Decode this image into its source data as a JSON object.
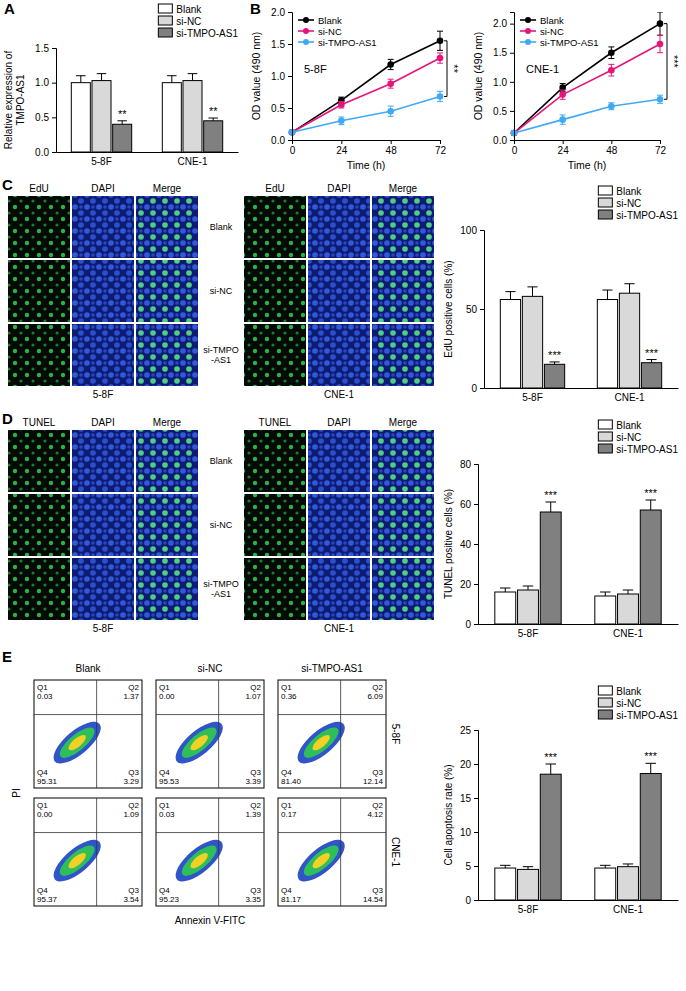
{
  "panels": [
    "A",
    "B",
    "C",
    "D",
    "E"
  ],
  "chart_data": [
    {
      "type": "bar",
      "y_label": "Relative expression of TMPO-AS1",
      "categories": [
        "5-8F",
        "CNE-1"
      ],
      "series": [
        {
          "name": "Blank",
          "color": "#ffffff",
          "values": [
            1.0,
            1.0
          ],
          "errors": [
            0.1,
            0.1
          ]
        },
        {
          "name": "si-NC",
          "color": "#d9d9d9",
          "values": [
            1.03,
            1.03
          ],
          "errors": [
            0.1,
            0.1
          ]
        },
        {
          "name": "si-TMPO-AS1",
          "color": "#808080",
          "values": [
            0.4,
            0.45
          ],
          "errors": [
            0.05,
            0.04
          ],
          "annotations": [
            "**",
            "**"
          ]
        }
      ],
      "ylim": [
        0,
        1.5
      ],
      "yticks": [
        {
          "value": 0,
          "label": "0.0"
        },
        {
          "value": 0.5,
          "label": "0.5"
        },
        {
          "value": 1,
          "label": "1.0"
        },
        {
          "value": 1.5,
          "label": "1.5"
        }
      ],
      "legend": "top-right"
    },
    {
      "type": "line",
      "subtitle": "5-8F",
      "x_label": "Time (h)",
      "y_label": "OD value (490 nm)",
      "x": [
        0,
        24,
        48,
        72
      ],
      "xlim": [
        0,
        72
      ],
      "xticks": [
        0,
        24,
        48,
        72
      ],
      "ylim": [
        0,
        2
      ],
      "yticks": [
        {
          "value": 0,
          "label": "0.0"
        },
        {
          "value": 0.5,
          "label": "0.5"
        },
        {
          "value": 1,
          "label": "1.0"
        },
        {
          "value": 1.5,
          "label": "1.5"
        },
        {
          "value": 2,
          "label": "2.0"
        }
      ],
      "marker": "circle",
      "legend": "top-left",
      "annotations": [
        "**"
      ],
      "series": [
        {
          "name": "Blank",
          "color": "#000000",
          "values": [
            0.12,
            0.62,
            1.18,
            1.55
          ],
          "errors": [
            0.02,
            0.05,
            0.08,
            0.15
          ]
        },
        {
          "name": "si-NC",
          "color": "#e5157a",
          "values": [
            0.12,
            0.55,
            0.88,
            1.28
          ],
          "errors": [
            0.02,
            0.05,
            0.07,
            0.08
          ]
        },
        {
          "name": "si-TMPO-AS1",
          "color": "#3fa9f5",
          "values": [
            0.12,
            0.3,
            0.45,
            0.68
          ],
          "errors": [
            0.02,
            0.06,
            0.08,
            0.08
          ]
        }
      ]
    },
    {
      "type": "line",
      "subtitle": "CNE-1",
      "x_label": "Time (h)",
      "y_label": "OD value (490 nm)",
      "x": [
        0,
        24,
        48,
        72
      ],
      "xlim": [
        0,
        72
      ],
      "xticks": [
        0,
        24,
        48,
        72
      ],
      "ylim": [
        0,
        2.2
      ],
      "yticks": [
        {
          "value": 0,
          "label": "0.0"
        },
        {
          "value": 0.5,
          "label": "0.5"
        },
        {
          "value": 1,
          "label": "1.0"
        },
        {
          "value": 1.5,
          "label": "1.5"
        },
        {
          "value": 2,
          "label": "2.0"
        }
      ],
      "marker": "circle",
      "legend": "top-left",
      "annotations": [
        "***"
      ],
      "series": [
        {
          "name": "Blank",
          "color": "#000000",
          "values": [
            0.12,
            0.9,
            1.5,
            2.0
          ],
          "errors": [
            0.02,
            0.07,
            0.1,
            0.2
          ]
        },
        {
          "name": "si-NC",
          "color": "#e5157a",
          "values": [
            0.12,
            0.78,
            1.2,
            1.65
          ],
          "errors": [
            0.02,
            0.08,
            0.1,
            0.15
          ]
        },
        {
          "name": "si-TMPO-AS1",
          "color": "#3fa9f5",
          "values": [
            0.12,
            0.35,
            0.58,
            0.7
          ],
          "errors": [
            0.02,
            0.08,
            0.06,
            0.07
          ]
        }
      ]
    },
    {
      "type": "bar",
      "y_label": "EdU positive cells (%)",
      "categories": [
        "5-8F",
        "CNE-1"
      ],
      "series": [
        {
          "name": "Blank",
          "color": "#ffffff",
          "values": [
            56,
            56
          ],
          "errors": [
            5,
            6
          ]
        },
        {
          "name": "si-NC",
          "color": "#d9d9d9",
          "values": [
            58,
            60
          ],
          "errors": [
            6,
            6
          ]
        },
        {
          "name": "si-TMPO-AS1",
          "color": "#808080",
          "values": [
            15,
            16
          ],
          "errors": [
            1.5,
            2
          ],
          "annotations": [
            "***",
            "***"
          ]
        }
      ],
      "ylim": [
        0,
        100
      ],
      "yticks": [
        0,
        50,
        100
      ],
      "legend": "top-right"
    },
    {
      "type": "bar",
      "y_label": "TUNEL positive cells (%)",
      "categories": [
        "5-8F",
        "CNE-1"
      ],
      "series": [
        {
          "name": "Blank",
          "color": "#ffffff",
          "values": [
            16,
            14
          ],
          "errors": [
            2,
            2
          ]
        },
        {
          "name": "si-NC",
          "color": "#d9d9d9",
          "values": [
            17,
            15
          ],
          "errors": [
            2,
            2
          ]
        },
        {
          "name": "si-TMPO-AS1",
          "color": "#808080",
          "values": [
            56,
            57
          ],
          "errors": [
            5,
            5
          ],
          "annotations": [
            "***",
            "***"
          ]
        }
      ],
      "ylim": [
        0,
        80
      ],
      "yticks": [
        0,
        20,
        40,
        60,
        80
      ],
      "legend": "top-right"
    },
    {
      "type": "bar",
      "y_label": "Cell apoptosis rate (%)",
      "categories": [
        "5-8F",
        "CNE-1"
      ],
      "series": [
        {
          "name": "Blank",
          "color": "#ffffff",
          "values": [
            4.7,
            4.7
          ],
          "errors": [
            0.4,
            0.4
          ]
        },
        {
          "name": "si-NC",
          "color": "#d9d9d9",
          "values": [
            4.5,
            4.9
          ],
          "errors": [
            0.4,
            0.4
          ]
        },
        {
          "name": "si-TMPO-AS1",
          "color": "#808080",
          "values": [
            18.5,
            18.6
          ],
          "errors": [
            1.5,
            1.5
          ],
          "annotations": [
            "***",
            "***"
          ]
        }
      ],
      "ylim": [
        0,
        25
      ],
      "yticks": [
        0,
        5,
        10,
        15,
        20,
        25
      ],
      "legend": "top-right"
    }
  ],
  "micrographs": [
    {
      "columns": [
        "EdU",
        "DAPI",
        "Merge"
      ],
      "rows": [
        "Blank",
        "si-NC",
        "si-TMPO-AS1"
      ],
      "groups": [
        "5-8F",
        "CNE-1"
      ]
    },
    {
      "columns": [
        "TUNEL",
        "DAPI",
        "Merge"
      ],
      "rows": [
        "Blank",
        "si-NC",
        "si-TMPO-AS1"
      ],
      "groups": [
        "5-8F",
        "CNE-1"
      ]
    }
  ],
  "flow": {
    "columns": [
      "Blank",
      "si-NC",
      "si-TMPO-AS1"
    ],
    "rows": [
      "5-8F",
      "CNE-1"
    ],
    "x_label": "Annexin V-FITC",
    "y_label": "PI",
    "quadrants": [
      [
        [
          {
            "name": "Q1",
            "value": "0.03"
          },
          {
            "name": "Q2",
            "value": "1.37"
          },
          {
            "name": "Q3",
            "value": "3.29"
          },
          {
            "name": "Q4",
            "value": "95.31"
          }
        ],
        [
          {
            "name": "Q1",
            "value": "0.00"
          },
          {
            "name": "Q2",
            "value": "1.07"
          },
          {
            "name": "Q3",
            "value": "3.39"
          },
          {
            "name": "Q4",
            "value": "95.53"
          }
        ],
        [
          {
            "name": "Q1",
            "value": "0.36"
          },
          {
            "name": "Q2",
            "value": "6.09"
          },
          {
            "name": "Q3",
            "value": "12.14"
          },
          {
            "name": "Q4",
            "value": "81.40"
          }
        ]
      ],
      [
        [
          {
            "name": "Q1",
            "value": "0.00"
          },
          {
            "name": "Q2",
            "value": "1.09"
          },
          {
            "name": "Q3",
            "value": "3.54"
          },
          {
            "name": "Q4",
            "value": "95.37"
          }
        ],
        [
          {
            "name": "Q1",
            "value": "0.03"
          },
          {
            "name": "Q2",
            "value": "1.39"
          },
          {
            "name": "Q3",
            "value": "3.35"
          },
          {
            "name": "Q4",
            "value": "95.23"
          }
        ],
        [
          {
            "name": "Q1",
            "value": "0.17"
          },
          {
            "name": "Q2",
            "value": "4.12"
          },
          {
            "name": "Q3",
            "value": "14.54"
          },
          {
            "name": "Q4",
            "value": "81.17"
          }
        ]
      ]
    ]
  }
}
